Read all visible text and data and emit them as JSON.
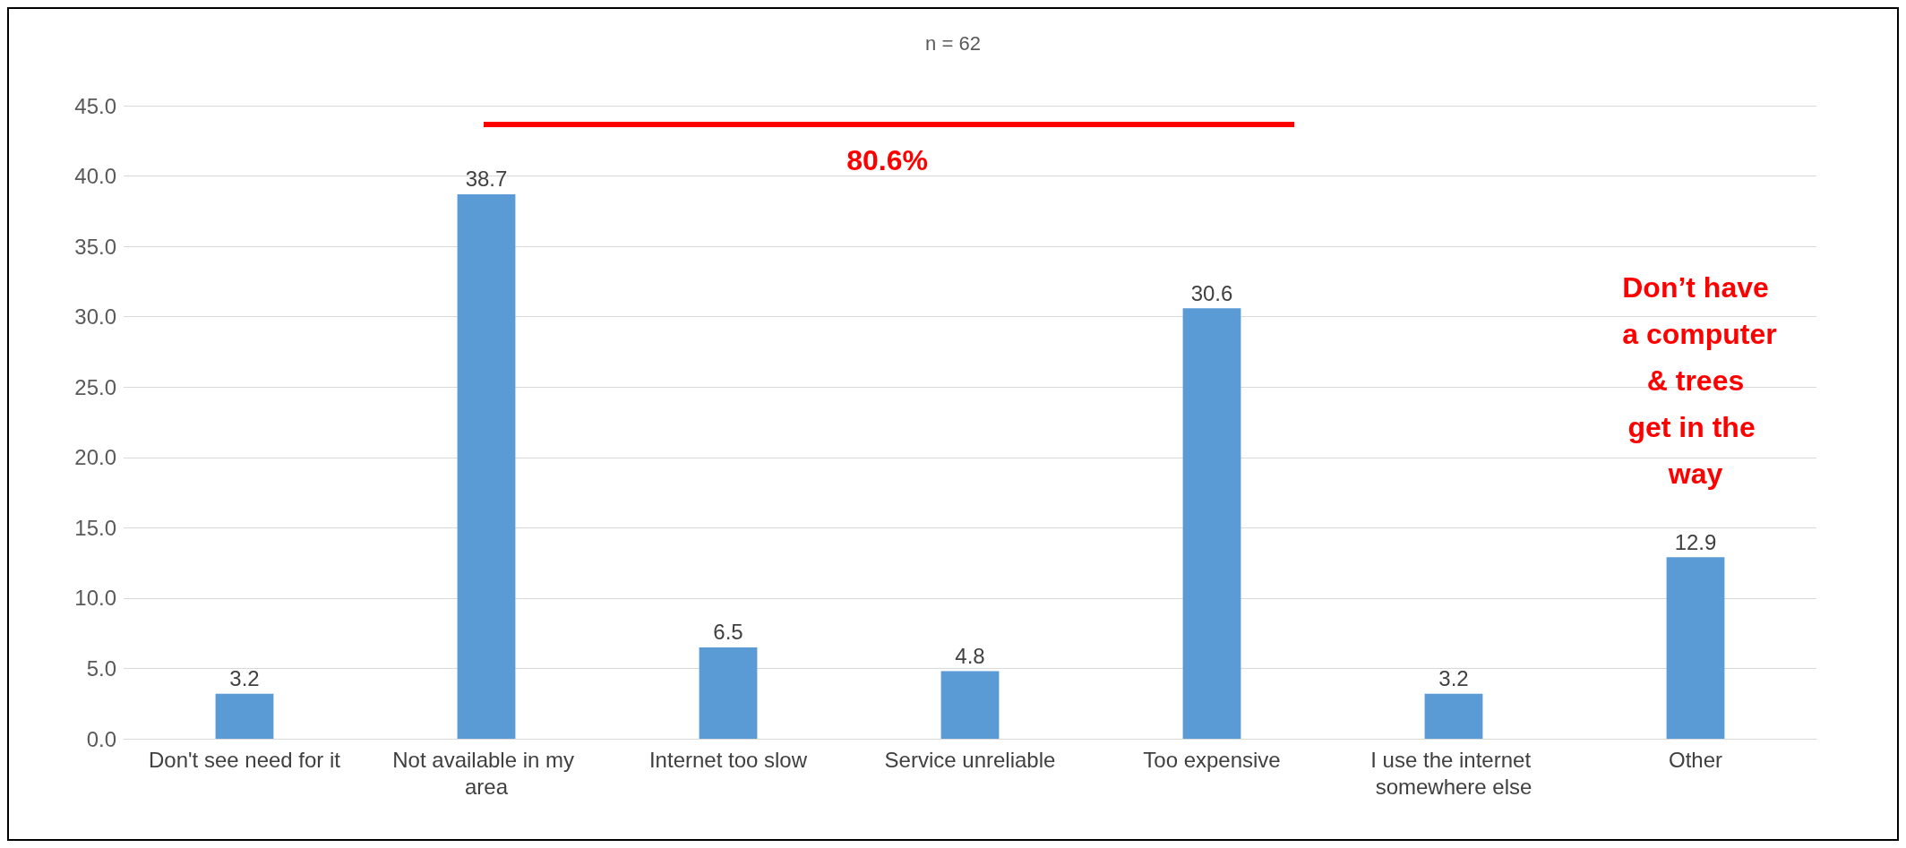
{
  "chart_data": {
    "type": "bar",
    "title": "n = 62",
    "categories": [
      "Don't see need for it",
      "Not available in my area",
      "Internet too slow",
      "Service unreliable",
      "Too expensive",
      "I use the internet somewhere else",
      "Other"
    ],
    "values": [
      3.2,
      38.7,
      6.5,
      4.8,
      30.6,
      3.2,
      12.9
    ],
    "color": "#5b9bd5",
    "ylim": [
      0,
      45
    ],
    "yticks": [
      {
        "value": 0,
        "label": "0.0"
      },
      {
        "value": 5,
        "label": "5.0"
      },
      {
        "value": 10,
        "label": "10.0"
      },
      {
        "value": 15,
        "label": "15.0"
      },
      {
        "value": 20,
        "label": "20.0"
      },
      {
        "value": 25,
        "label": "25.0"
      },
      {
        "value": 30,
        "label": "30.0"
      },
      {
        "value": 35,
        "label": "35.0"
      },
      {
        "value": 40,
        "label": "40.0"
      },
      {
        "value": 45,
        "label": "45.0"
      }
    ],
    "grid": "y",
    "data_labels": true,
    "annotations": [
      "80.6%",
      "Don’t have a computer & trees get in the way"
    ]
  }
}
